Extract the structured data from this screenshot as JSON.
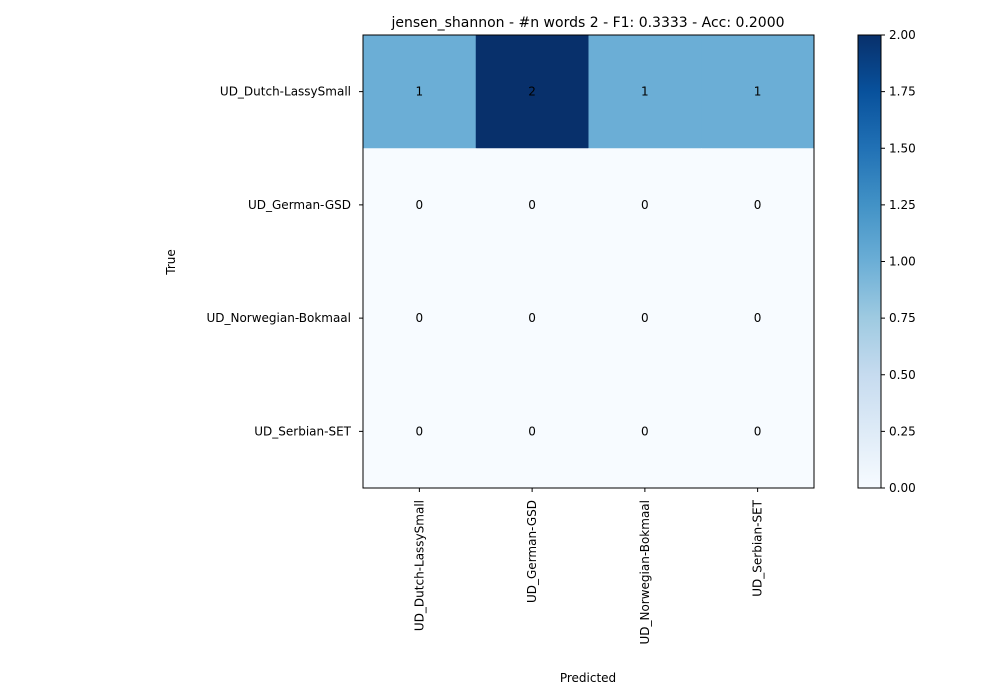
{
  "chart_data": {
    "type": "heatmap",
    "title": "jensen_shannon - #n words 2 - F1: 0.3333 - Acc: 0.2000",
    "xlabel": "Predicted",
    "ylabel": "True",
    "x_categories": [
      "UD_Dutch-LassySmall",
      "UD_German-GSD",
      "UD_Norwegian-Bokmaal",
      "UD_Serbian-SET"
    ],
    "y_categories": [
      "UD_Dutch-LassySmall",
      "UD_German-GSD",
      "UD_Norwegian-Bokmaal",
      "UD_Serbian-SET"
    ],
    "values": [
      [
        1,
        2,
        1,
        1
      ],
      [
        0,
        0,
        0,
        0
      ],
      [
        0,
        0,
        0,
        0
      ],
      [
        0,
        0,
        0,
        0
      ]
    ],
    "colorbar": {
      "range": [
        0,
        2
      ],
      "ticks": [
        "0.00",
        "0.25",
        "0.50",
        "0.75",
        "1.00",
        "1.25",
        "1.50",
        "1.75",
        "2.00"
      ],
      "colormap": "Blues"
    }
  }
}
